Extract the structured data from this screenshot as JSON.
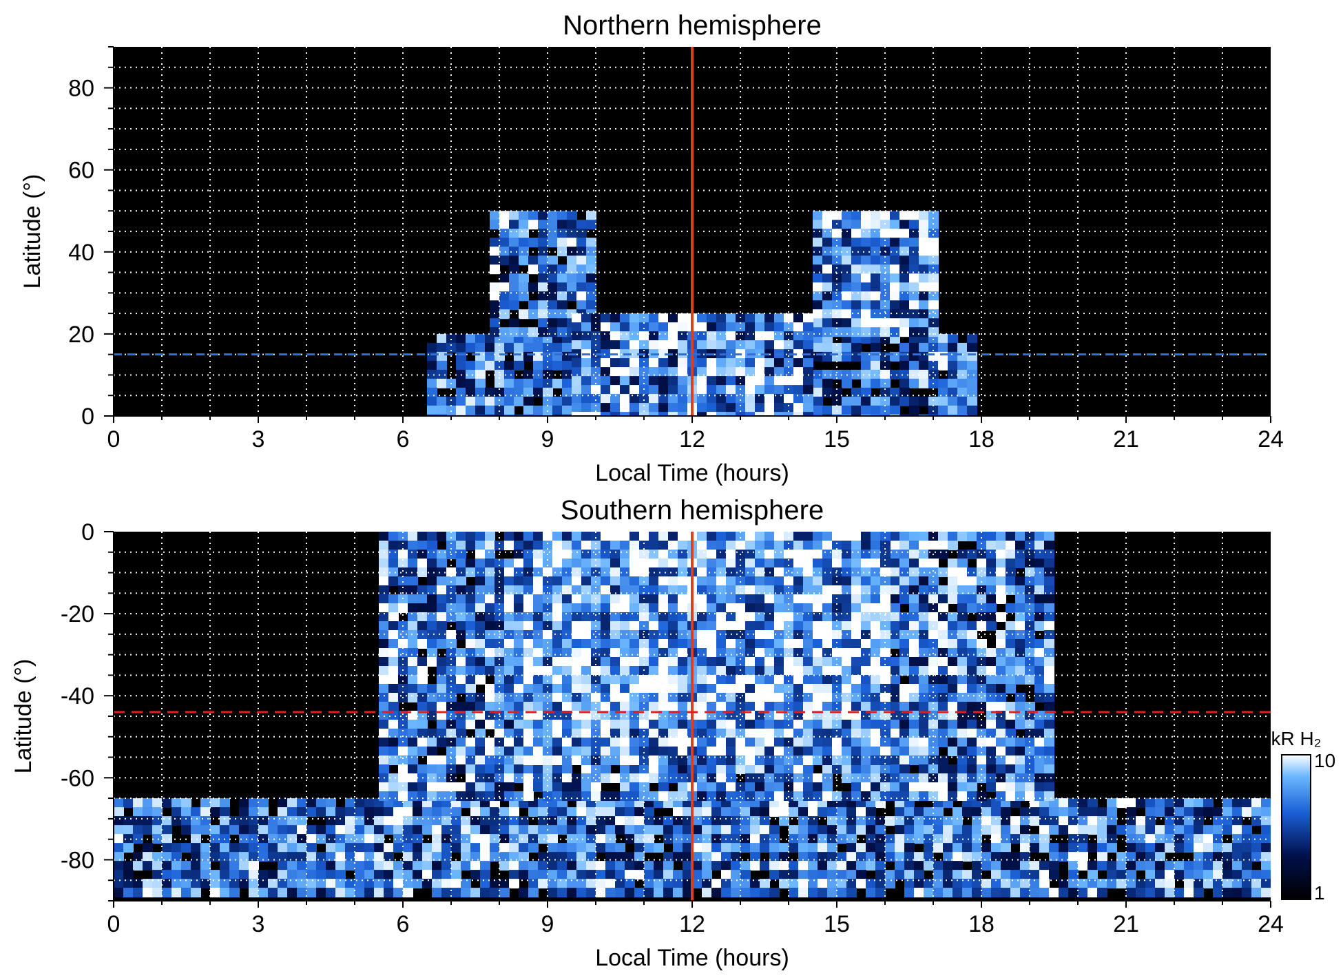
{
  "chart_data": [
    {
      "type": "heatmap",
      "title": "Northern hemisphere",
      "xlabel": "Local Time (hours)",
      "ylabel": "Latitude (°)",
      "xlim": [
        0,
        24
      ],
      "ylim": [
        0,
        90
      ],
      "xticks": [
        "0",
        "3",
        "6",
        "9",
        "12",
        "15",
        "18",
        "21",
        "24"
      ],
      "yticks": [
        "0",
        "20",
        "40",
        "60",
        "80"
      ],
      "ytick_values": [
        0,
        20,
        40,
        60,
        80
      ],
      "grid": true,
      "background": "#000000",
      "noon_line": {
        "x": 12,
        "color": "#d9401e"
      },
      "reference_line": {
        "y": 15,
        "style": "dashed",
        "color": "#2f6fd6"
      },
      "regions": [
        {
          "x": [
            6.5,
            17.8
          ],
          "y": [
            0,
            20
          ],
          "level": 0.55
        },
        {
          "x": [
            7.8,
            10.0
          ],
          "y": [
            20,
            50
          ],
          "level": 0.6
        },
        {
          "x": [
            14.5,
            17.0
          ],
          "y": [
            20,
            50
          ],
          "level": 0.75
        },
        {
          "x": [
            9.5,
            14.5
          ],
          "y": [
            0,
            25
          ],
          "level": 0.7
        }
      ]
    },
    {
      "type": "heatmap",
      "title": "Southern hemisphere",
      "xlabel": "Local Time (hours)",
      "ylabel": "Latitude (°)",
      "xlim": [
        0,
        24
      ],
      "ylim": [
        -90,
        0
      ],
      "xticks": [
        "0",
        "3",
        "6",
        "9",
        "12",
        "15",
        "18",
        "21",
        "24"
      ],
      "yticks": [
        "0",
        "-20",
        "-40",
        "-60",
        "-80"
      ],
      "ytick_values": [
        0,
        -20,
        -40,
        -60,
        -80
      ],
      "grid": true,
      "background": "#000000",
      "noon_line": {
        "x": 12,
        "color": "#d9401e"
      },
      "reference_line": {
        "y": -44,
        "style": "dashed",
        "color": "#e02020"
      },
      "regions": [
        {
          "x": [
            0,
            24
          ],
          "y": [
            -88,
            -65
          ],
          "level": 0.6
        },
        {
          "x": [
            5.5,
            19.5
          ],
          "y": [
            -65,
            0
          ],
          "level": 0.65
        },
        {
          "x": [
            8.5,
            16.0
          ],
          "y": [
            -55,
            0
          ],
          "level": 0.8
        }
      ],
      "colorbar": {
        "label": "kR H₂",
        "min_label": "1",
        "max_label": "10",
        "min": 1,
        "max": 10,
        "scale": "log"
      }
    }
  ]
}
